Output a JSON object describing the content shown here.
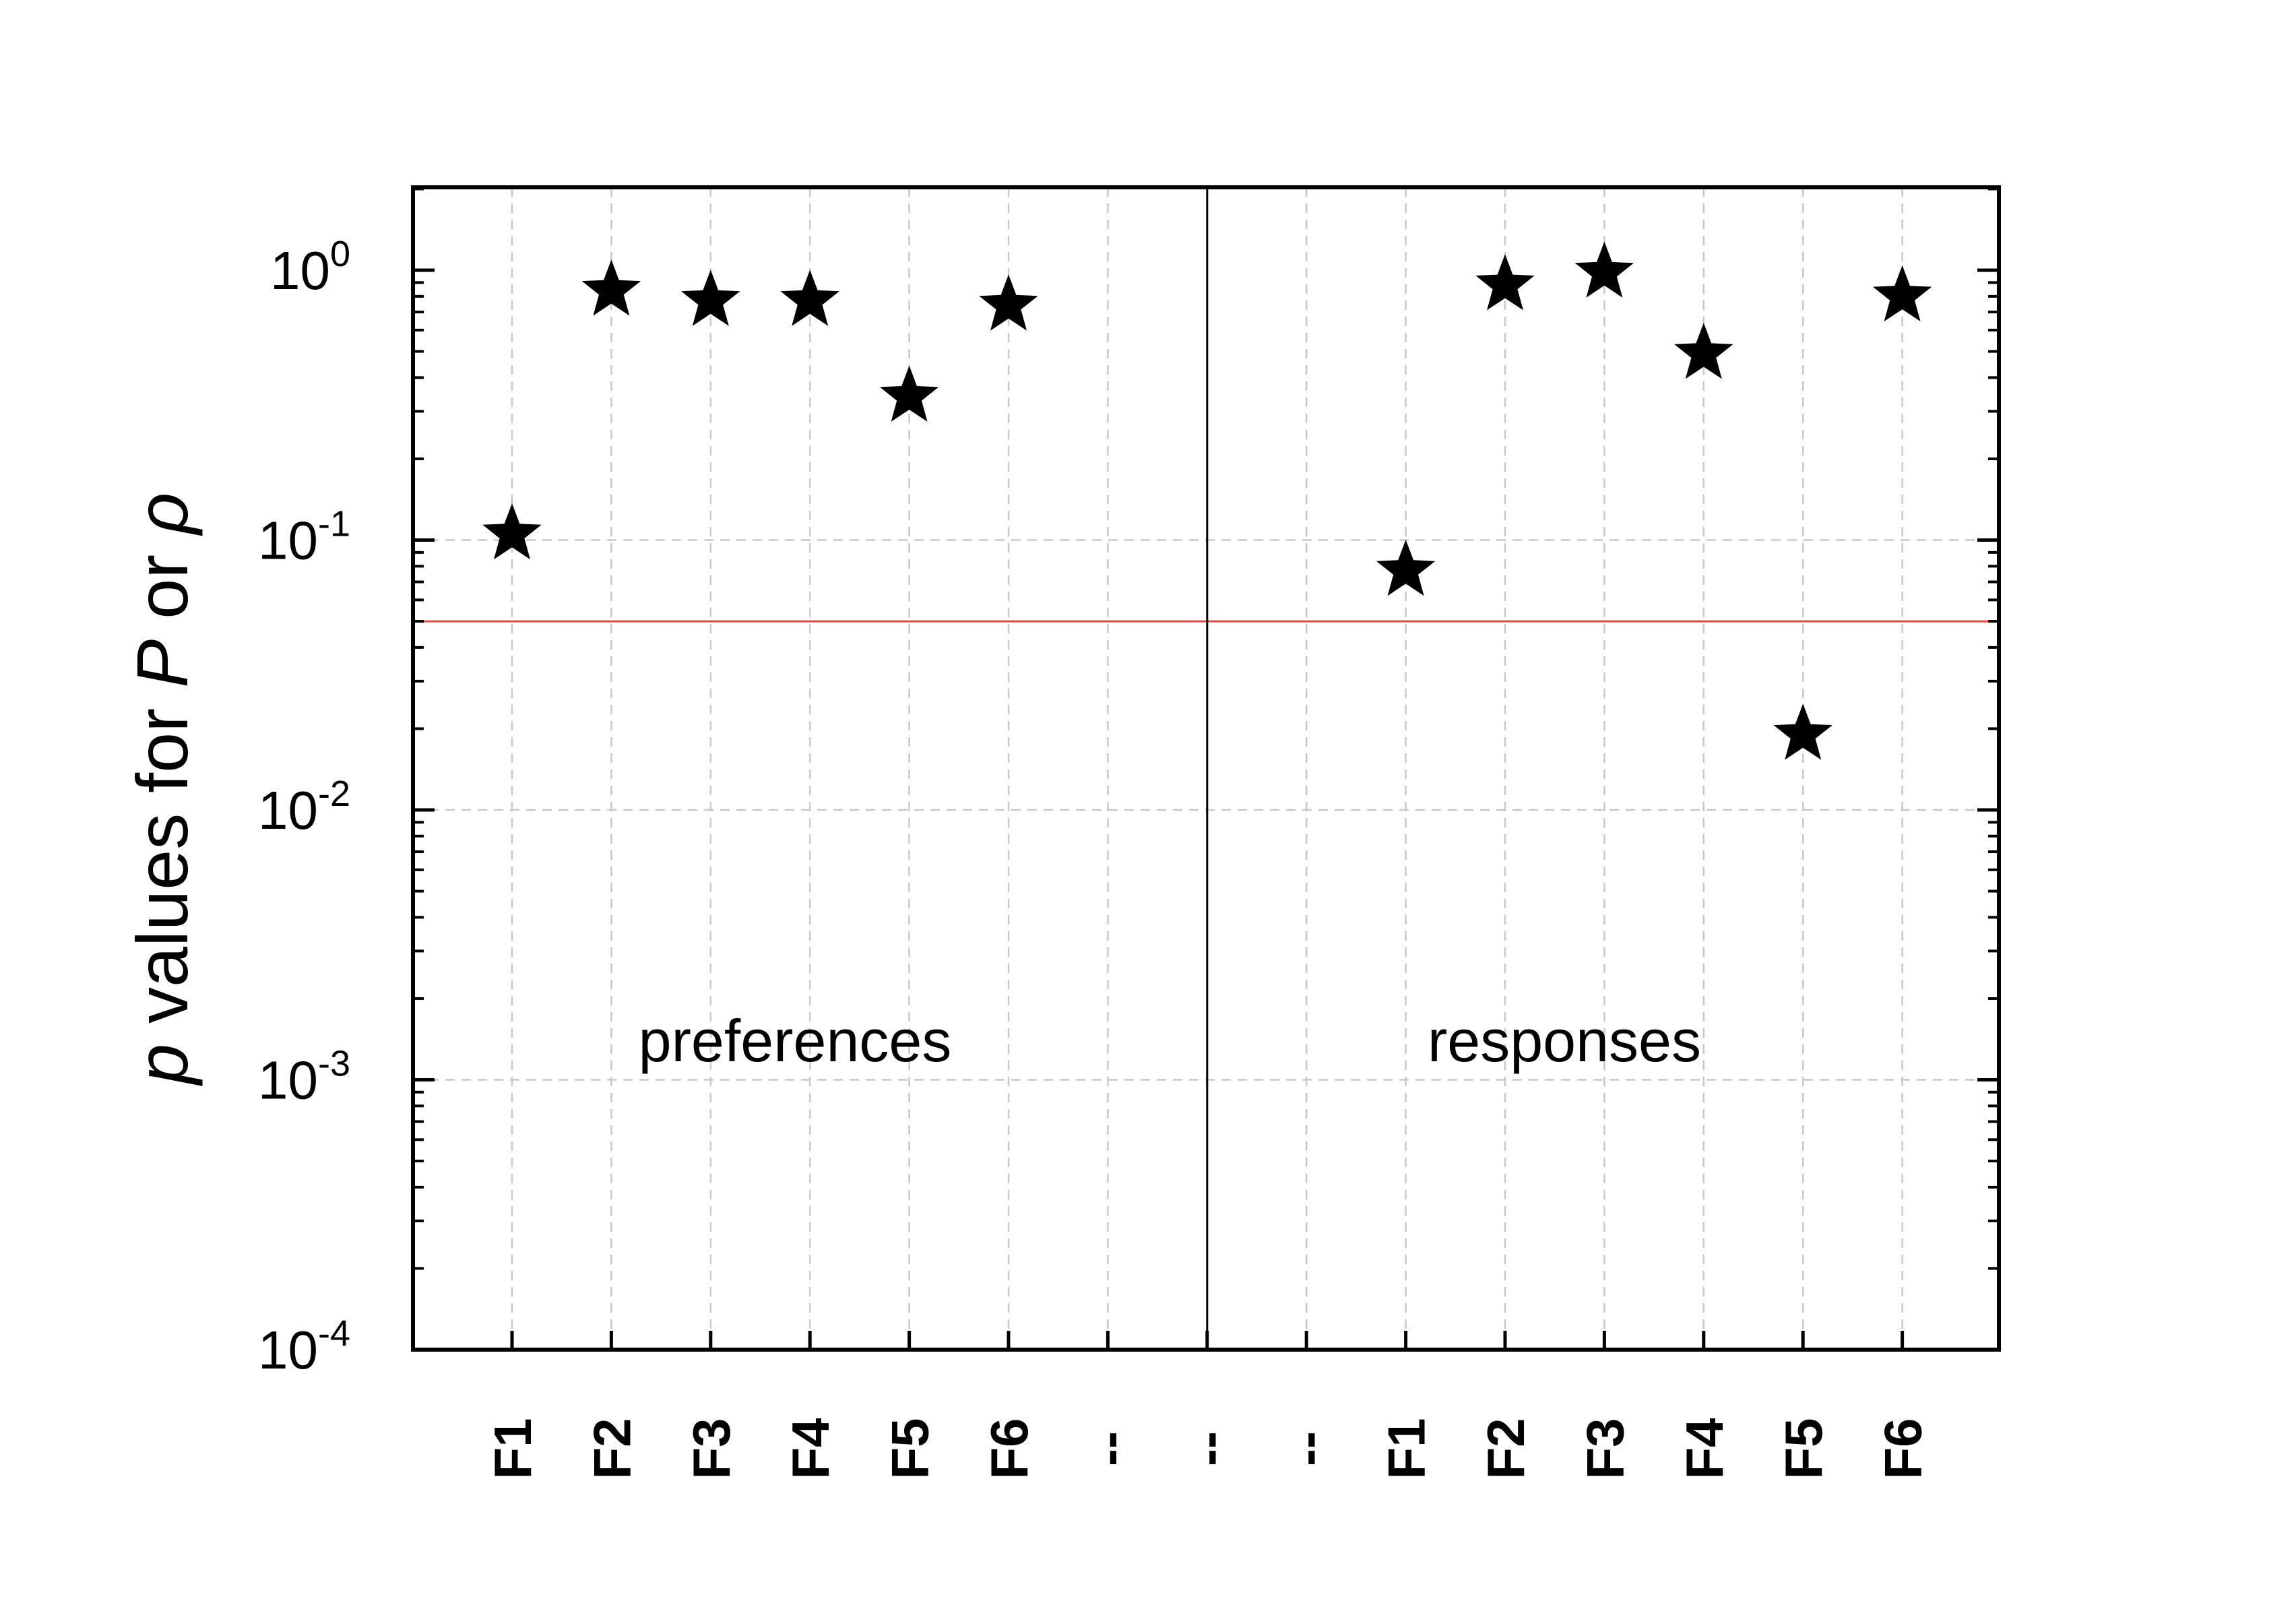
{
  "chart_data": {
    "type": "scatter",
    "marker": "star",
    "y_scale": "log",
    "ylim": [
      0.0001,
      1
    ],
    "y_ticks": [
      {
        "value": 1,
        "base": "10",
        "exp": "0"
      },
      {
        "value": 0.1,
        "base": "10",
        "exp": "-1"
      },
      {
        "value": 0.01,
        "base": "10",
        "exp": "-2"
      },
      {
        "value": 0.001,
        "base": "10",
        "exp": "-3"
      },
      {
        "value": 0.0001,
        "base": "10",
        "exp": "-4"
      }
    ],
    "ylabel": {
      "p": "p",
      "values_for": " values for ",
      "P": "P",
      "or": " or ",
      "rho": "ρ"
    },
    "categories": [
      "F1",
      "F2",
      "F3",
      "F4",
      "F5",
      "F6",
      "--",
      "--",
      "--",
      "F1",
      "F2",
      "F3",
      "F4",
      "F5",
      "F6"
    ],
    "points": [
      {
        "category_index": 0,
        "y": 0.105
      },
      {
        "category_index": 1,
        "y": 0.84
      },
      {
        "category_index": 2,
        "y": 0.77
      },
      {
        "category_index": 3,
        "y": 0.77
      },
      {
        "category_index": 4,
        "y": 0.34
      },
      {
        "category_index": 5,
        "y": 0.74
      },
      {
        "category_index": 9,
        "y": 0.077
      },
      {
        "category_index": 10,
        "y": 0.88
      },
      {
        "category_index": 11,
        "y": 0.98
      },
      {
        "category_index": 12,
        "y": 0.49
      },
      {
        "category_index": 13,
        "y": 0.019
      },
      {
        "category_index": 14,
        "y": 0.8
      }
    ],
    "reference_line": {
      "y": 0.05,
      "color": "#e8484a"
    },
    "divider_after_index": 7,
    "annotations": [
      "preferences",
      "responses"
    ],
    "grid": true,
    "colors": {
      "marker": "#000000",
      "grid": "#c8c8c8",
      "axis": "#000000"
    }
  }
}
